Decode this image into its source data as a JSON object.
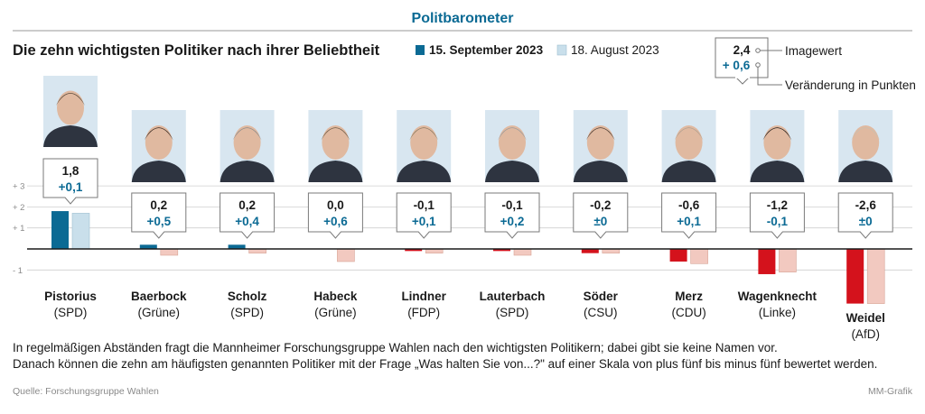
{
  "header": {
    "kicker": "Politbarometer",
    "title": "Die zehn wichtigsten Politiker nach ihrer Beliebtheit"
  },
  "legend": {
    "current": "15. September 2023",
    "previous": "18. August 2023",
    "key_value": "2,4",
    "key_change": "+ 0,6",
    "key_value_label": "Imagewert",
    "key_change_label": "Veränderung in Punkten"
  },
  "colors": {
    "accent": "#0b6a94",
    "accent_light": "#c9dfeb",
    "negative": "#d4121c",
    "negative_light": "#f2c9c0",
    "text": "#1a1a1a",
    "grid": "#cfcfcf",
    "muted": "#8a8a8a"
  },
  "chart_data": {
    "type": "bar",
    "title": "Die zehn wichtigsten Politiker nach ihrer Beliebtheit",
    "ylim": [
      -3,
      3
    ],
    "yticks": [
      3,
      2,
      1,
      -1
    ],
    "ytick_labels": [
      "+ 3",
      "+ 2",
      "+ 1",
      "- 1"
    ],
    "grid": true,
    "legend_position": "top-right",
    "categories": [
      "Pistorius",
      "Baerbock",
      "Scholz",
      "Habeck",
      "Lindner",
      "Lauterbach",
      "Söder",
      "Merz",
      "Wagenknecht",
      "Weidel"
    ],
    "parties": [
      "(SPD)",
      "(Grüne)",
      "(SPD)",
      "(Grüne)",
      "(FDP)",
      "(SPD)",
      "(CSU)",
      "(CDU)",
      "(Linke)",
      "(AfD)"
    ],
    "series": [
      {
        "name": "15. September 2023",
        "values": [
          1.8,
          0.2,
          0.2,
          0.0,
          -0.1,
          -0.1,
          -0.2,
          -0.6,
          -1.2,
          -2.6
        ]
      },
      {
        "name": "18. August 2023",
        "values": [
          1.7,
          -0.3,
          -0.2,
          -0.6,
          -0.2,
          -0.3,
          -0.2,
          -0.7,
          -1.1,
          -2.6
        ]
      }
    ],
    "value_labels": [
      "1,8",
      "0,2",
      "0,2",
      "0,0",
      "-0,1",
      "-0,1",
      "-0,2",
      "-0,6",
      "-1,2",
      "-2,6"
    ],
    "change_labels": [
      "+0,1",
      "+0,5",
      "+0,4",
      "+0,6",
      "+0,1",
      "+0,2",
      "±0",
      "+0,1",
      "-0,1",
      "±0"
    ]
  },
  "footer": {
    "note_line1": "In regelmäßigen Abständen fragt die Mannheimer Forschungsgruppe Wahlen nach den wichtigsten Politikern; dabei gibt sie keine Namen vor.",
    "note_line2": "Danach können die zehn am häufigsten genannten Politiker mit der Frage „Was halten Sie von...?\" auf einer Skala von plus fünf bis minus fünf bewertet werden.",
    "source": "Quelle: Forschungsgruppe Wahlen",
    "credit": "MM-Grafik"
  }
}
